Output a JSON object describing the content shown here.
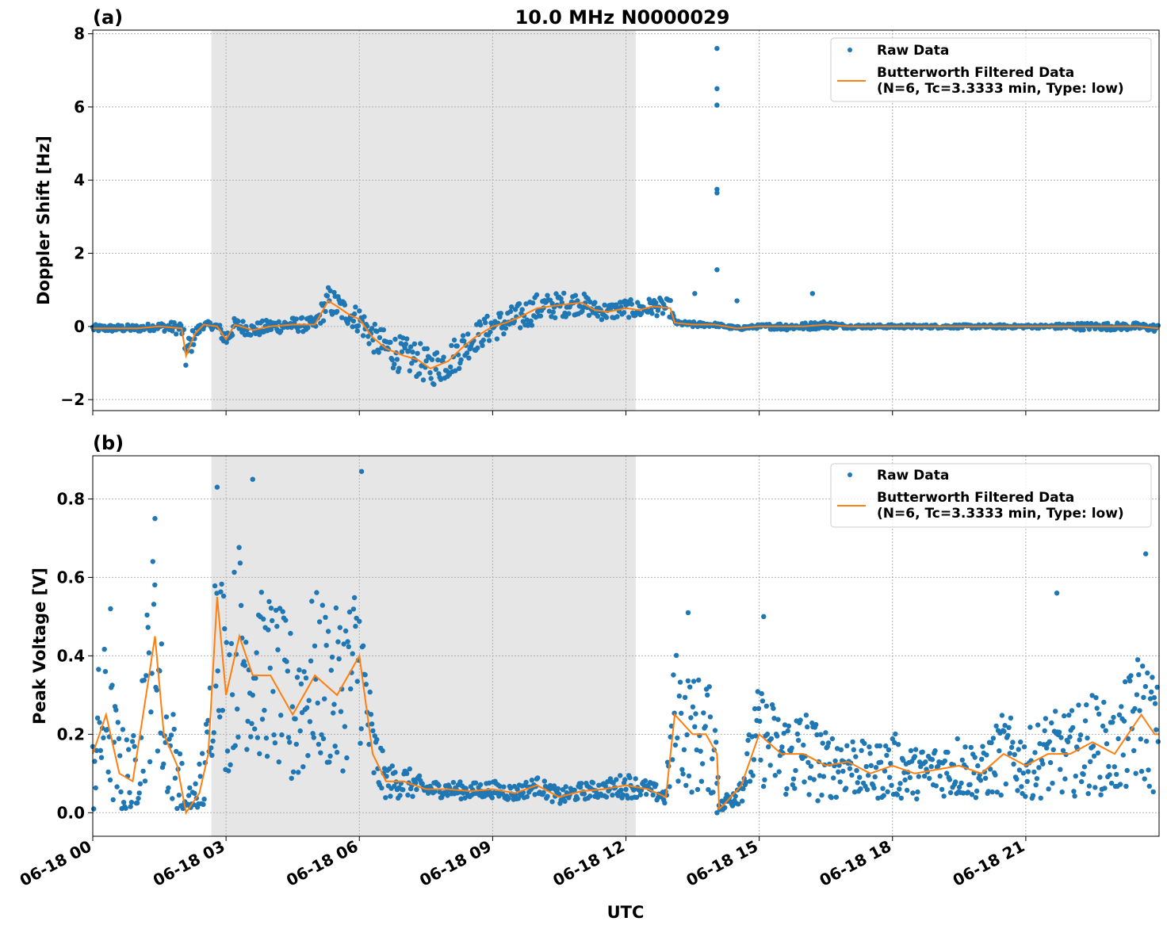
{
  "title": "10.0 MHz N0000029",
  "xlabel": "UTC",
  "x_tick_labels": [
    "06-18 00",
    "06-18 03",
    "06-18 06",
    "06-18 09",
    "06-18 12",
    "06-18 15",
    "06-18 18",
    "06-18 21"
  ],
  "colors": {
    "raw": "#1f77b4",
    "filtered": "#ff7f0e",
    "shade": "#e6e6e6",
    "grid": "#b0b0b0"
  },
  "chart_data": [
    {
      "type": "scatter",
      "panel_label": "(a)",
      "ylabel": "Doppler Shift [Hz]",
      "xlim_hours": [
        0,
        24
      ],
      "ylim": [
        -2.3,
        8.1
      ],
      "y_ticks": [
        -2,
        0,
        2,
        4,
        6,
        8
      ],
      "y_tick_labels": [
        "−2",
        "0",
        "2",
        "4",
        "6",
        "8"
      ],
      "grid": true,
      "legend_position": "top-right",
      "shaded_span_hours": [
        2.67,
        12.22
      ],
      "legend": {
        "raw": "Raw Data",
        "filtered_line1": "Butterworth Filtered Data",
        "filtered_line2": "(N=6, Tc=3.3333 min, Type: low)"
      },
      "series": [
        {
          "name": "Butterworth Filtered Data",
          "kind": "line",
          "x": [
            0,
            0.5,
            1,
            1.5,
            2,
            2.1,
            2.3,
            2.5,
            2.8,
            3,
            3.2,
            3.6,
            4,
            4.5,
            5,
            5.3,
            5.5,
            5.8,
            6,
            6.3,
            6.6,
            7,
            7.3,
            7.6,
            8,
            8.3,
            8.6,
            9,
            9.3,
            9.6,
            10,
            10.3,
            10.6,
            11,
            11.3,
            11.6,
            12,
            12.3,
            12.6,
            13,
            13.1,
            13.5,
            14,
            14.5,
            15,
            15.5,
            16,
            16.5,
            17,
            17.5,
            18,
            18.5,
            19,
            19.5,
            20,
            20.5,
            21,
            21.5,
            22,
            22.5,
            23,
            23.5,
            24
          ],
          "y": [
            -0.05,
            -0.05,
            -0.05,
            0.0,
            -0.05,
            -0.8,
            -0.2,
            0.05,
            0.0,
            -0.35,
            0.05,
            -0.1,
            0.0,
            0.05,
            0.05,
            0.7,
            0.55,
            0.3,
            0.2,
            -0.3,
            -0.6,
            -0.8,
            -0.9,
            -1.15,
            -0.95,
            -0.6,
            -0.3,
            0.0,
            0.1,
            0.25,
            0.5,
            0.55,
            0.6,
            0.65,
            0.45,
            0.4,
            0.5,
            0.45,
            0.55,
            0.5,
            0.1,
            0.05,
            0.05,
            -0.05,
            0.0,
            0.0,
            0.0,
            0.05,
            0.0,
            0.0,
            0.0,
            0.0,
            0.0,
            0.0,
            0.0,
            0.0,
            0.0,
            0.0,
            0.0,
            0.0,
            0.0,
            0.0,
            -0.05
          ]
        },
        {
          "name": "Raw Data",
          "kind": "points",
          "spread_hz": [
            0.1,
            0.1,
            0.1,
            0.1,
            0.2,
            0.5,
            0.2,
            0.1,
            0.1,
            0.3,
            0.2,
            0.2,
            0.2,
            0.2,
            0.2,
            0.4,
            0.4,
            0.3,
            0.4,
            0.4,
            0.5,
            0.5,
            0.5,
            0.5,
            0.5,
            0.5,
            0.4,
            0.4,
            0.4,
            0.4,
            0.4,
            0.35,
            0.35,
            0.3,
            0.25,
            0.25,
            0.25,
            0.25,
            0.25,
            0.25,
            0.05,
            0.08,
            0.05,
            0.05,
            0.05,
            0.1,
            0.1,
            0.1,
            0.05,
            0.05,
            0.05,
            0.05,
            0.05,
            0.05,
            0.05,
            0.05,
            0.05,
            0.05,
            0.1,
            0.1,
            0.1,
            0.1,
            0.1
          ],
          "outliers": [
            [
              14.05,
              7.6
            ],
            [
              14.05,
              6.5
            ],
            [
              14.05,
              6.05
            ],
            [
              14.05,
              3.75
            ],
            [
              14.05,
              3.65
            ],
            [
              14.05,
              1.55
            ],
            [
              13.55,
              0.9
            ],
            [
              14.5,
              0.7
            ],
            [
              16.2,
              0.9
            ]
          ]
        }
      ]
    },
    {
      "type": "scatter",
      "panel_label": "(b)",
      "ylabel": "Peak Voltage [V]",
      "xlim_hours": [
        0,
        24
      ],
      "ylim": [
        -0.06,
        0.91
      ],
      "y_ticks": [
        0.0,
        0.2,
        0.4,
        0.6,
        0.8
      ],
      "y_tick_labels": [
        "0.0",
        "0.2",
        "0.4",
        "0.6",
        "0.8"
      ],
      "grid": true,
      "legend_position": "top-right",
      "shaded_span_hours": [
        2.67,
        12.22
      ],
      "legend": {
        "raw": "Raw Data",
        "filtered_line1": "Butterworth Filtered Data",
        "filtered_line2": "(N=6, Tc=3.3333 min, Type: low)"
      },
      "series": [
        {
          "name": "Butterworth Filtered Data",
          "kind": "line",
          "x": [
            0,
            0.3,
            0.6,
            0.9,
            1.2,
            1.4,
            1.6,
            1.9,
            2.1,
            2.4,
            2.6,
            2.8,
            3.0,
            3.3,
            3.6,
            4.0,
            4.5,
            5.0,
            5.5,
            6.0,
            6.3,
            6.6,
            7.0,
            7.5,
            8.0,
            8.5,
            9.0,
            9.5,
            10.0,
            10.5,
            11.0,
            11.5,
            12.0,
            12.5,
            12.9,
            13.1,
            13.5,
            13.8,
            14.05,
            14.1,
            14.2,
            14.6,
            15.0,
            15.5,
            16.0,
            16.5,
            17.0,
            17.5,
            18.0,
            18.5,
            19.0,
            19.5,
            20.0,
            20.5,
            21.0,
            21.5,
            22.0,
            22.5,
            23.0,
            23.3,
            23.6,
            23.9,
            24
          ],
          "y": [
            0.15,
            0.25,
            0.1,
            0.08,
            0.3,
            0.45,
            0.2,
            0.12,
            0.0,
            0.05,
            0.15,
            0.55,
            0.3,
            0.45,
            0.35,
            0.35,
            0.25,
            0.35,
            0.3,
            0.4,
            0.15,
            0.08,
            0.08,
            0.06,
            0.06,
            0.055,
            0.06,
            0.05,
            0.07,
            0.04,
            0.055,
            0.06,
            0.07,
            0.06,
            0.04,
            0.25,
            0.2,
            0.2,
            0.15,
            0.01,
            0.02,
            0.07,
            0.2,
            0.15,
            0.15,
            0.12,
            0.13,
            0.1,
            0.12,
            0.1,
            0.11,
            0.12,
            0.1,
            0.15,
            0.12,
            0.15,
            0.15,
            0.18,
            0.15,
            0.2,
            0.25,
            0.2,
            0.2
          ],
          "noise_v": [
            0.08,
            0.09,
            0.06,
            0.05,
            0.1,
            0.12,
            0.08,
            0.05,
            0.02,
            0.04,
            0.06,
            0.12,
            0.1,
            0.12,
            0.1,
            0.1,
            0.1,
            0.1,
            0.1,
            0.1,
            0.05,
            0.02,
            0.02,
            0.01,
            0.01,
            0.01,
            0.01,
            0.01,
            0.01,
            0.01,
            0.01,
            0.01,
            0.015,
            0.01,
            0.01,
            0.08,
            0.07,
            0.07,
            0.05,
            0.005,
            0.01,
            0.02,
            0.06,
            0.05,
            0.06,
            0.04,
            0.04,
            0.03,
            0.04,
            0.03,
            0.03,
            0.04,
            0.03,
            0.05,
            0.04,
            0.05,
            0.05,
            0.06,
            0.05,
            0.07,
            0.08,
            0.07,
            0.07
          ]
        },
        {
          "name": "Raw Data",
          "kind": "points",
          "outliers": [
            [
              2.8,
              0.83
            ],
            [
              3.6,
              0.85
            ],
            [
              6.05,
              0.87
            ],
            [
              1.4,
              0.75
            ],
            [
              0.4,
              0.52
            ],
            [
              23.7,
              0.66
            ],
            [
              21.7,
              0.56
            ],
            [
              15.1,
              0.5
            ],
            [
              13.4,
              0.51
            ],
            [
              14.05,
              0.0
            ]
          ]
        }
      ]
    }
  ]
}
